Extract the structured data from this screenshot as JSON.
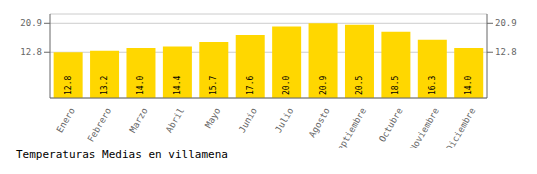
{
  "chart_data": {
    "type": "bar",
    "title": "Temperaturas Medias en villamena",
    "categories": [
      "Enero",
      "Febrero",
      "Marzo",
      "Abril",
      "Mayo",
      "Junio",
      "Julio",
      "Agosto",
      "Septiembre",
      "Octubre",
      "Noviembre",
      "Diciembre"
    ],
    "values": [
      12.8,
      13.2,
      14.0,
      14.4,
      15.7,
      17.6,
      20.0,
      20.9,
      20.5,
      18.5,
      16.3,
      14.0
    ],
    "value_labels": [
      "12.8",
      "13.2",
      "14.0",
      "14.4",
      "15.7",
      "17.6",
      "20.0",
      "20.9",
      "20.5",
      "18.5",
      "16.3",
      "14.0"
    ],
    "color": "#FFD700",
    "ylim": [
      0,
      23.5
    ],
    "yticks": [
      12.8,
      20.9
    ],
    "y2lim": [
      0,
      23.5
    ],
    "y2ticks": [
      12.8,
      20.9
    ],
    "grid": true,
    "data_labels": true
  }
}
